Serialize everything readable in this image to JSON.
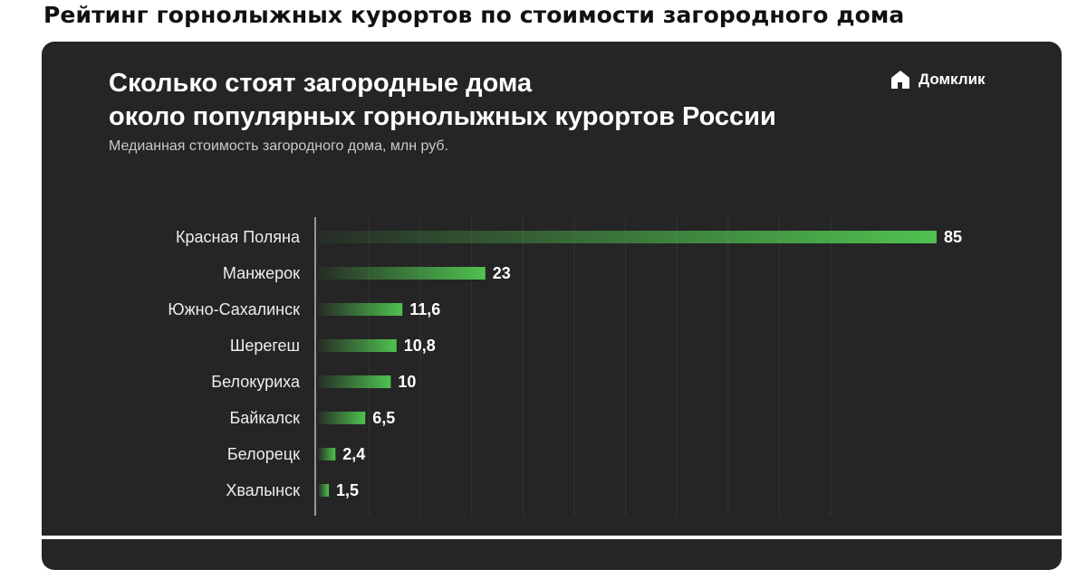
{
  "page_heading": "Рейтинг горнолыжных курортов по стоимости загородного дома",
  "card": {
    "title_line1": "Сколько стоят загородные дома",
    "title_line2": "около популярных горнолыжных курортов России",
    "subtitle": "Медианная стоимость загородного дома, млн руб.",
    "brand_name": "Домклик",
    "brand_icon": "house-logo-icon"
  },
  "colors": {
    "background": "#252525",
    "bar": "#4fc24f",
    "text": "#ffffff",
    "gridline": "#353535"
  },
  "chart_data": {
    "type": "bar",
    "orientation": "horizontal",
    "categories": [
      "Красная Поляна",
      "Манжерок",
      "Южно-Сахалинск",
      "Шерегеш",
      "Белокуриха",
      "Байкалск",
      "Белорецк",
      "Хвалынск"
    ],
    "values": [
      85,
      23,
      11.6,
      10.8,
      10,
      6.5,
      2.4,
      1.5
    ],
    "value_labels": [
      "85",
      "23",
      "11,6",
      "10,8",
      "10",
      "6,5",
      "2,4",
      "1,5"
    ],
    "title": "Сколько стоят загородные дома около популярных горнолыжных курортов России",
    "subtitle": "Медианная стоимость загородного дома, млн руб.",
    "xlabel": "",
    "ylabel": "",
    "xlim": [
      0,
      85
    ],
    "grid": true
  }
}
